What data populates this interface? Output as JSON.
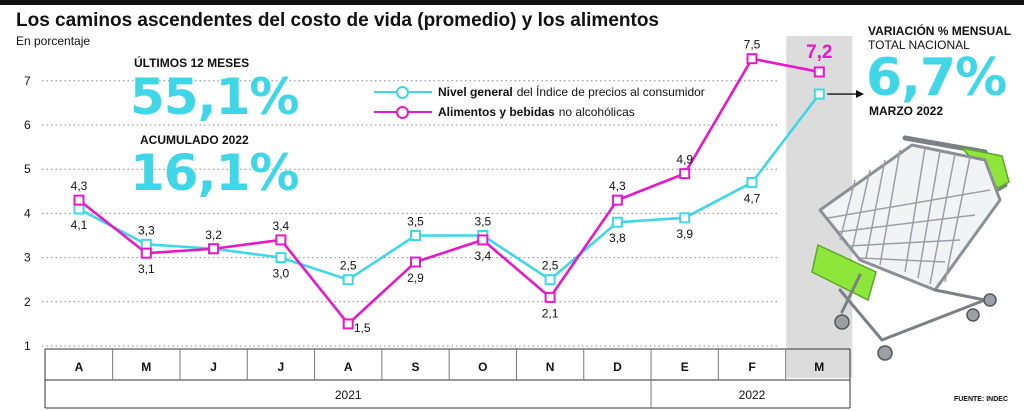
{
  "title": "Los caminos ascendentes del costo de vida (promedio) y los alimentos",
  "subtitle": "En porcentaje",
  "stats": {
    "last12_label": "ÚLTIMOS 12 MESES",
    "last12_value": "55,1%",
    "acum_label": "ACUMULADO 2022",
    "acum_value": "16,1%"
  },
  "legend": {
    "general_bold": "Nivel general",
    "general_rest": "del Índice de precios al consumidor",
    "food_bold": "Alimentos y bebidas",
    "food_rest": "no alcohólicas"
  },
  "right": {
    "heading": "VARIACIÓN % MENSUAL",
    "sub": "TOTAL NACIONAL",
    "value": "6,7%",
    "month": "MARZO 2022"
  },
  "source": "FUENTE: INDEC",
  "colors": {
    "general": "#3fd7e8",
    "food": "#e619c8",
    "highlight": "#dcdcdc",
    "grid": "#888888"
  },
  "chart_data": {
    "type": "line",
    "categories": [
      "A",
      "M",
      "J",
      "J",
      "A",
      "S",
      "O",
      "N",
      "D",
      "E",
      "F",
      "M"
    ],
    "years": [
      {
        "label": "2021",
        "from": 0,
        "to": 8
      },
      {
        "label": "2022",
        "from": 9,
        "to": 11
      }
    ],
    "yticks": [
      "1",
      "2",
      "3",
      "4",
      "5",
      "6",
      "7"
    ],
    "ylim": [
      1,
      7.6
    ],
    "highlight_index": 11,
    "series": [
      {
        "name": "Nivel general del Índice de precios al consumidor",
        "color": "#3fd7e8",
        "values": [
          4.1,
          3.3,
          3.2,
          3.0,
          2.5,
          3.5,
          3.5,
          2.5,
          3.8,
          3.9,
          4.7,
          6.7
        ],
        "labels": [
          "4,1",
          "3,3",
          "",
          "3,0",
          "2,5",
          "3,5",
          "3,5",
          "2,5",
          "3,8",
          "3,9",
          "4,7",
          ""
        ]
      },
      {
        "name": "Alimentos y bebidas no alcohólicas",
        "color": "#e619c8",
        "values": [
          4.3,
          3.1,
          3.2,
          3.4,
          1.5,
          2.9,
          3.4,
          2.1,
          4.3,
          4.9,
          7.5,
          7.2
        ],
        "labels": [
          "4,3",
          "3,1",
          "3,2",
          "3,4",
          "1,5",
          "2,9",
          "3,4",
          "2,1",
          "4,3",
          "4,9",
          "7,5",
          "7,2"
        ]
      }
    ]
  }
}
